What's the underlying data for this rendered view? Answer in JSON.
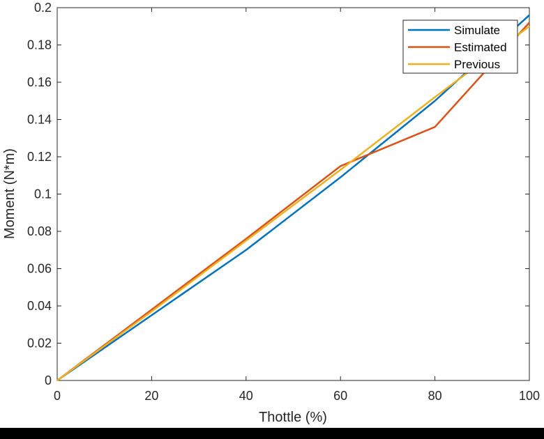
{
  "chart_data": {
    "type": "line",
    "title": "",
    "xlabel": "Thottle (%)",
    "ylabel": "Moment (N*m)",
    "xlim": [
      0,
      100
    ],
    "ylim": [
      0,
      0.2
    ],
    "xticks": [
      "0",
      "20",
      "40",
      "60",
      "80",
      "100"
    ],
    "yticks": [
      "0",
      "0.02",
      "0.04",
      "0.06",
      "0.08",
      "0.1",
      "0.12",
      "0.14",
      "0.16",
      "0.18",
      "0.2"
    ],
    "grid": false,
    "legend_position": "top-right",
    "x": [
      0,
      20,
      40,
      60,
      80,
      100
    ],
    "series": [
      {
        "name": "Simulate",
        "color": "#0072BD",
        "values": [
          0,
          0.035,
          0.07,
          0.109,
          0.15,
          0.196
        ]
      },
      {
        "name": "Estimated",
        "color": "#D95319",
        "values": [
          0,
          0.038,
          0.076,
          0.115,
          0.136,
          0.192
        ]
      },
      {
        "name": "Previous",
        "color": "#EDB120",
        "values": [
          0,
          0.037,
          0.075,
          0.113,
          0.152,
          0.19
        ]
      }
    ]
  }
}
